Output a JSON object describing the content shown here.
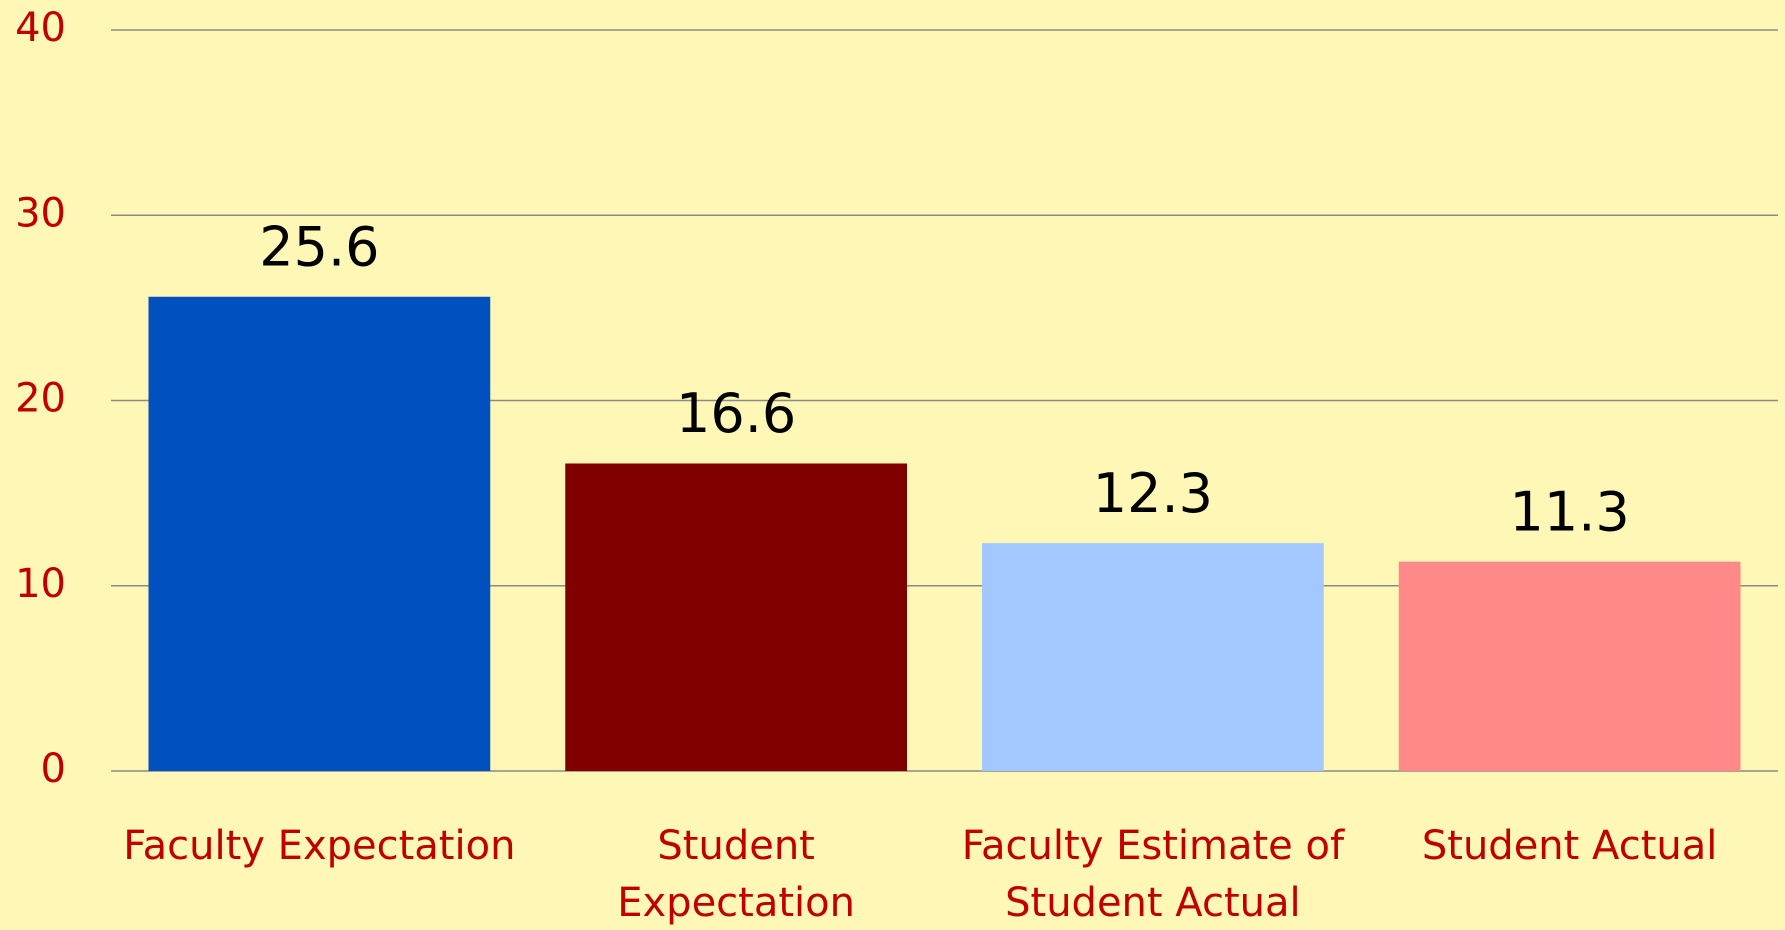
{
  "chart_data": {
    "type": "bar",
    "categories": [
      [
        "Faculty Expectation"
      ],
      [
        "Student",
        "Expectation"
      ],
      [
        "Faculty Estimate of",
        "Student Actual"
      ],
      [
        "Student Actual"
      ]
    ],
    "values": [
      25.6,
      16.6,
      12.3,
      11.3
    ],
    "colors": [
      "#0050c0",
      "#800000",
      "#a2c8ff",
      "#ff8888"
    ],
    "ylim": [
      0,
      40
    ],
    "yticks": [
      0,
      10,
      20,
      30,
      40
    ],
    "grid": true
  }
}
